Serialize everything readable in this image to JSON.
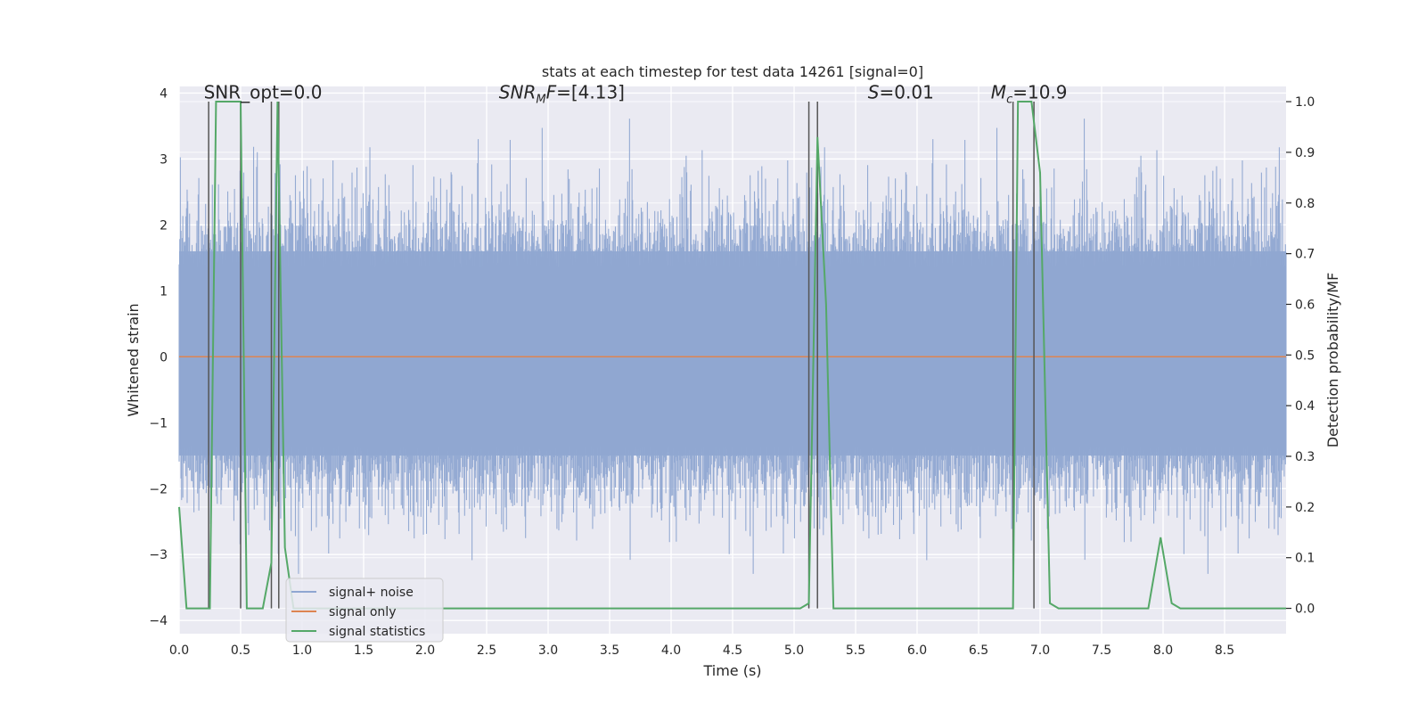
{
  "chart_data": {
    "type": "line",
    "title": "stats at each timestep for test data 14261 [signal=0]",
    "xlabel": "Time (s)",
    "ylabel": "Whitened strain",
    "y2label": "Detection probability/MF",
    "xlim": [
      0.0,
      9.0
    ],
    "ylim": [
      -4.2,
      4.1
    ],
    "y2lim": [
      -0.05,
      1.03
    ],
    "grid": true,
    "x_ticks": [
      0.0,
      0.5,
      1.0,
      1.5,
      2.0,
      2.5,
      3.0,
      3.5,
      4.0,
      4.5,
      5.0,
      5.5,
      6.0,
      6.5,
      7.0,
      7.5,
      8.0,
      8.5
    ],
    "x_tick_labels": [
      "0.0",
      "0.5",
      "1.0",
      "1.5",
      "2.0",
      "2.5",
      "3.0",
      "3.5",
      "4.0",
      "4.5",
      "5.0",
      "5.5",
      "6.0",
      "6.5",
      "7.0",
      "7.5",
      "8.0",
      "8.5"
    ],
    "y_ticks": [
      4,
      3,
      2,
      1,
      0,
      -1,
      -2,
      -3,
      -4
    ],
    "y_tick_labels": [
      "4",
      "3",
      "2",
      "1",
      "0",
      "−1",
      "−2",
      "−3",
      "−4"
    ],
    "y2_ticks": [
      1.0,
      0.9,
      0.8,
      0.7,
      0.6,
      0.5,
      0.4,
      0.3,
      0.2,
      0.1,
      0.0
    ],
    "y2_tick_labels": [
      "1.0",
      "0.9",
      "0.8",
      "0.7",
      "0.6",
      "0.5",
      "0.4",
      "0.3",
      "0.2",
      "0.1",
      "0.0"
    ],
    "annotations": [
      {
        "text": "SNR_opt=0.0",
        "x": 0.2,
        "y": 4.0
      },
      {
        "text": "SNR",
        "sub": "M",
        "suffix": "F=[4.13]",
        "x": 2.6,
        "y": 4.0
      },
      {
        "text": "S",
        "suffix": "=0.01",
        "x": 5.6,
        "y": 4.0
      },
      {
        "text": "M",
        "sub": "c",
        "suffix": "=10.9",
        "x": 6.6,
        "y": 4.0
      }
    ],
    "legend": {
      "position": "lower-left",
      "entries": [
        {
          "label": "signal+ noise",
          "color": "#8fa6d1"
        },
        {
          "label": "signal only",
          "color": "#dd8452"
        },
        {
          "label": "signal statistics",
          "color": "#55a868"
        }
      ]
    },
    "series": [
      {
        "name": "signal+ noise",
        "color": "#8fa6d1",
        "kind": "noise_band",
        "t_start": 0.0,
        "t_end": 9.0,
        "core_range": [
          -1.5,
          1.6
        ],
        "envelope_range": [
          -3.6,
          4.0
        ],
        "n_samples": 1800
      },
      {
        "name": "signal only",
        "color": "#dd8452",
        "kind": "line",
        "x": [
          0.0,
          9.0
        ],
        "y": [
          0.0,
          0.0
        ]
      },
      {
        "name": "signal statistics",
        "color": "#55a868",
        "kind": "line",
        "axis": "right",
        "x": [
          0.0,
          0.06,
          0.25,
          0.3,
          0.5,
          0.55,
          0.68,
          0.75,
          0.8,
          0.86,
          0.93,
          5.05,
          5.12,
          5.19,
          5.26,
          5.32,
          6.5,
          6.78,
          6.82,
          6.93,
          7.0,
          7.08,
          7.15,
          7.88,
          7.98,
          8.07,
          8.14,
          8.2,
          9.0
        ],
        "y": [
          0.2,
          0.0,
          0.0,
          1.0,
          1.0,
          0.0,
          0.0,
          0.09,
          1.0,
          0.12,
          0.0,
          0.0,
          0.01,
          0.93,
          0.6,
          0.0,
          0.0,
          0.0,
          1.0,
          1.0,
          0.86,
          0.01,
          0.0,
          0.0,
          0.14,
          0.01,
          0.0,
          0.0,
          0.0
        ]
      }
    ],
    "vertical_markers": [
      0.24,
      0.5,
      0.75,
      0.81,
      5.12,
      5.19,
      6.78,
      6.95
    ]
  }
}
